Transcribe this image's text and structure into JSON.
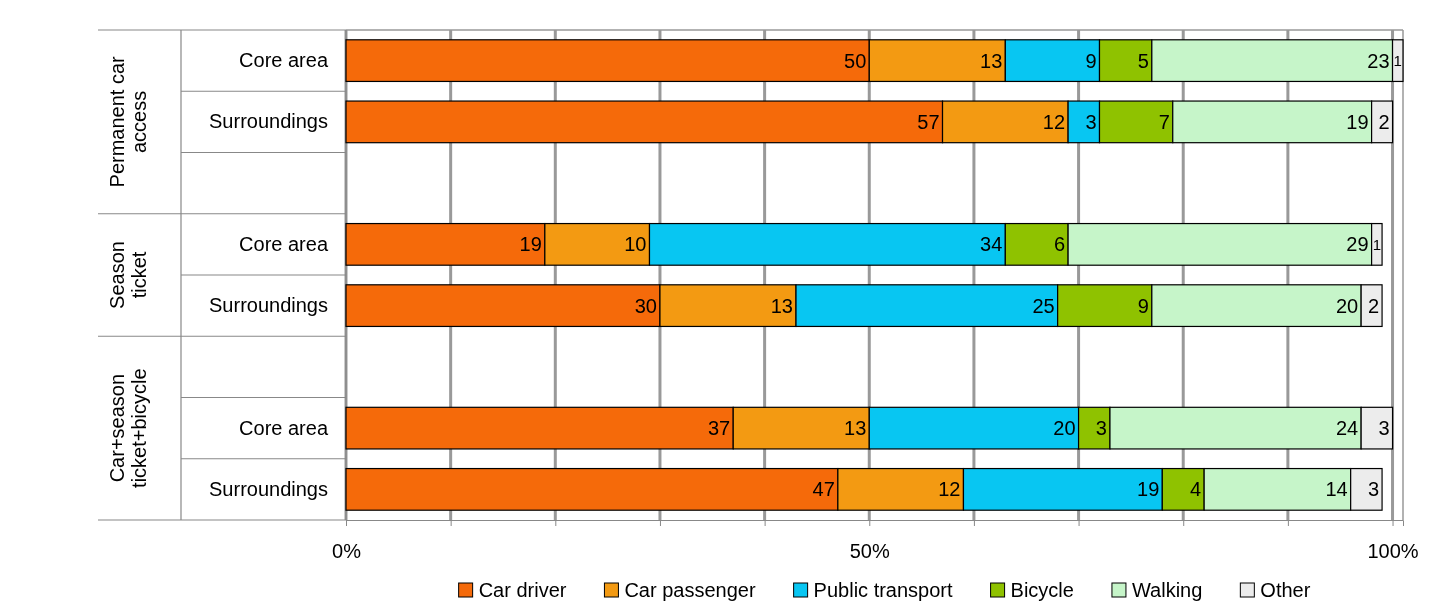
{
  "chart_data": {
    "type": "bar",
    "orientation": "horizontal",
    "stacked": true,
    "categories": [
      "Core area",
      "Surroundings",
      null,
      "Core area",
      "Surroundings",
      null,
      "Core area",
      "Surroundings"
    ],
    "series": [
      {
        "name": "Car driver",
        "color": "#f56a0a",
        "values": [
          50,
          57,
          null,
          19,
          30,
          null,
          37,
          47
        ]
      },
      {
        "name": "Car passenger",
        "color": "#f39a12",
        "values": [
          13,
          12,
          null,
          10,
          13,
          null,
          13,
          12
        ]
      },
      {
        "name": "Public transport",
        "color": "#08c6f2",
        "values": [
          9,
          3,
          null,
          34,
          25,
          null,
          20,
          19
        ]
      },
      {
        "name": "Bicycle",
        "color": "#8fc200",
        "values": [
          5,
          7,
          null,
          6,
          9,
          null,
          3,
          4
        ]
      },
      {
        "name": "Walking",
        "color": "#c6f5c9",
        "values": [
          23,
          19,
          null,
          29,
          20,
          null,
          24,
          14
        ]
      },
      {
        "name": "Other",
        "color": "#ececec",
        "values": [
          1,
          2,
          null,
          1,
          2,
          null,
          3,
          3
        ]
      }
    ],
    "xlim": [
      0,
      101
    ],
    "xticks": [
      {
        "value": 0,
        "label": "0%"
      },
      {
        "value": 10,
        "label": null
      },
      {
        "value": 20,
        "label": null
      },
      {
        "value": 30,
        "label": null
      },
      {
        "value": 40,
        "label": null
      },
      {
        "value": 50,
        "label": "50%"
      },
      {
        "value": 60,
        "label": null
      },
      {
        "value": 70,
        "label": null
      },
      {
        "value": 80,
        "label": null
      },
      {
        "value": 90,
        "label": null
      },
      {
        "value": 100,
        "label": "100%"
      }
    ],
    "grid": "x",
    "data_labels": true,
    "legend": "bottom",
    "annotations": [
      "Permanent car access",
      "Season ticket",
      "Car+season ticket+bicycle"
    ]
  }
}
